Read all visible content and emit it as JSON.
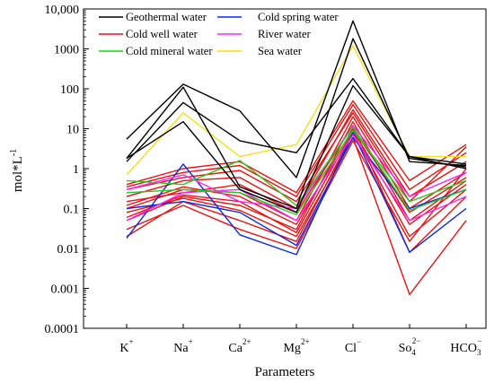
{
  "chart_data": {
    "type": "line",
    "xlabel": "Parameters",
    "ylabel": "mol*L",
    "ylabel_sup": "-1",
    "yscale": "log",
    "ylim": [
      0.0001,
      10000
    ],
    "y_ticks": [
      {
        "value": 10000,
        "label": "10,000"
      },
      {
        "value": 1000,
        "label": "1000"
      },
      {
        "value": 100,
        "label": "100"
      },
      {
        "value": 10,
        "label": "10"
      },
      {
        "value": 1,
        "label": "1"
      },
      {
        "value": 0.1,
        "label": "0.1"
      },
      {
        "value": 0.01,
        "label": "0.01"
      },
      {
        "value": 0.001,
        "label": "0.001"
      },
      {
        "value": 0.0001,
        "label": "0.0001"
      }
    ],
    "categories": [
      {
        "base": "K",
        "sup": "+",
        "sub": ""
      },
      {
        "base": "Na",
        "sup": "+",
        "sub": ""
      },
      {
        "base": "Ca",
        "sup": "2+",
        "sub": ""
      },
      {
        "base": "Mg",
        "sup": "2+",
        "sub": ""
      },
      {
        "base": "Cl",
        "sup": "−",
        "sub": ""
      },
      {
        "base": "So",
        "sup": "2−",
        "sub": "4"
      },
      {
        "base": "HCO",
        "sup": "−",
        "sub": "3"
      }
    ],
    "legend": [
      {
        "name": "Geothermal water",
        "color": "#000000"
      },
      {
        "name": "Cold spring water",
        "color": "#0a2be0"
      },
      {
        "name": "Cold well water",
        "color": "#ee1111"
      },
      {
        "name": "River water",
        "color": "#ff22ff"
      },
      {
        "name": "Cold mineral water",
        "color": "#22cc22"
      },
      {
        "name": "Sea water",
        "color": "#f2e01a"
      }
    ],
    "series": [
      {
        "group": "Cold well water",
        "color": "#ee1111",
        "values": [
          0.02,
          0.15,
          0.05,
          0.015,
          8,
          0.02,
          0.3
        ]
      },
      {
        "group": "Cold well water",
        "color": "#ee1111",
        "values": [
          0.05,
          0.2,
          0.12,
          0.03,
          15,
          0.05,
          0.5
        ]
      },
      {
        "group": "Cold well water",
        "color": "#ee1111",
        "values": [
          0.1,
          0.3,
          0.25,
          0.05,
          20,
          0.1,
          0.8
        ]
      },
      {
        "group": "Cold well water",
        "color": "#ee1111",
        "values": [
          0.2,
          0.5,
          0.6,
          0.1,
          30,
          0.2,
          1.5
        ]
      },
      {
        "group": "Cold well water",
        "color": "#ee1111",
        "values": [
          0.35,
          0.8,
          1.2,
          0.2,
          40,
          0.3,
          2.5
        ]
      },
      {
        "group": "Cold well water",
        "color": "#ee1111",
        "values": [
          0.15,
          0.25,
          0.4,
          0.08,
          12,
          0.008,
          0.2
        ]
      },
      {
        "group": "Cold well water",
        "color": "#ee1111",
        "values": [
          0.08,
          0.18,
          0.09,
          0.02,
          6,
          0.0007,
          0.05
        ]
      },
      {
        "group": "Cold well water",
        "color": "#ee1111",
        "values": [
          0.3,
          0.6,
          0.9,
          0.15,
          25,
          0.15,
          3.5
        ]
      },
      {
        "group": "Cold well water",
        "color": "#ee1111",
        "values": [
          0.03,
          0.12,
          0.03,
          0.01,
          5,
          0.015,
          1.0
        ]
      },
      {
        "group": "Cold well water",
        "color": "#ee1111",
        "values": [
          0.4,
          1.0,
          1.5,
          0.25,
          50,
          0.5,
          4.0
        ]
      },
      {
        "group": "Cold well water",
        "color": "#ee1111",
        "values": [
          0.12,
          0.35,
          0.2,
          0.04,
          10,
          0.08,
          0.6
        ]
      },
      {
        "group": "Cold well water",
        "color": "#ee1111",
        "values": [
          0.06,
          0.22,
          0.15,
          0.025,
          9,
          0.04,
          0.4
        ]
      },
      {
        "group": "Cold spring water",
        "color": "#0a2be0",
        "values": [
          0.018,
          1.3,
          0.022,
          0.007,
          8,
          0.008,
          0.1
        ]
      },
      {
        "group": "Cold spring water",
        "color": "#0a2be0",
        "values": [
          0.1,
          0.15,
          0.08,
          0.012,
          6,
          0.1,
          0.3
        ]
      },
      {
        "group": "River water",
        "color": "#ff22ff",
        "values": [
          0.05,
          0.25,
          0.3,
          0.05,
          7,
          0.05,
          0.2
        ]
      },
      {
        "group": "River water",
        "color": "#ff22ff",
        "values": [
          0.3,
          0.7,
          0.15,
          0.1,
          12,
          0.2,
          0.8
        ]
      },
      {
        "group": "Cold mineral water",
        "color": "#22cc22",
        "values": [
          0.5,
          0.4,
          1.6,
          0.12,
          11,
          0.09,
          0.3
        ]
      },
      {
        "group": "Cold mineral water",
        "color": "#22cc22",
        "values": [
          0.25,
          0.3,
          0.25,
          0.07,
          9,
          0.15,
          0.5
        ]
      },
      {
        "group": "Sea water",
        "color": "#f2e01a",
        "values": [
          0.7,
          25,
          2,
          4,
          1200,
          2,
          2
        ]
      },
      {
        "group": "Geothermal water",
        "color": "#000000",
        "values": [
          5.5,
          130,
          28,
          0.6,
          5000,
          1.5,
          1.2
        ]
      },
      {
        "group": "Geothermal water",
        "color": "#000000",
        "values": [
          1.8,
          110,
          0.35,
          0.1,
          1800,
          1.8,
          1.1
        ]
      },
      {
        "group": "Geothermal water",
        "color": "#000000",
        "values": [
          1.5,
          45,
          5,
          2.5,
          180,
          2.0,
          1.0
        ]
      },
      {
        "group": "Geothermal water",
        "color": "#000000",
        "values": [
          1.8,
          15,
          0.3,
          0.08,
          120,
          2.0,
          1.3
        ]
      }
    ]
  }
}
